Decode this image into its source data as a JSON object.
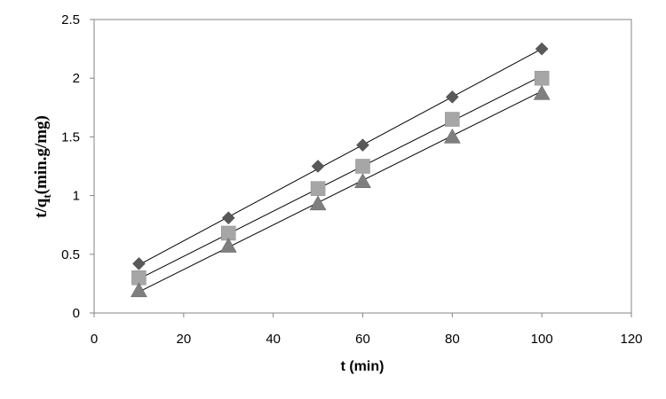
{
  "chart_data": {
    "type": "scatter",
    "title": "",
    "xlabel": "t (min)",
    "ylabel": {
      "prefix": "t/q",
      "subscript": "t",
      "suffix": "(min.g/mg)"
    },
    "xlim": [
      0,
      120
    ],
    "ylim": [
      0,
      2.5
    ],
    "x_ticks": [
      0,
      20,
      40,
      60,
      80,
      100,
      120
    ],
    "y_ticks": [
      0,
      0.5,
      1,
      1.5,
      2,
      2.5
    ],
    "x_tick_labels": [
      "0",
      "20",
      "40",
      "60",
      "80",
      "100",
      "120"
    ],
    "y_tick_labels": [
      "0",
      "0.5",
      "1",
      "1.5",
      "2",
      "2.5"
    ],
    "grid": false,
    "legend": "none",
    "series": [
      {
        "marker": "diamond",
        "color": "#595959",
        "x": [
          10,
          30,
          50,
          60,
          80,
          100
        ],
        "y": [
          0.42,
          0.81,
          1.25,
          1.43,
          1.84,
          2.25
        ],
        "trendline": [
          [
            10,
            0.41
          ],
          [
            100,
            2.25
          ]
        ]
      },
      {
        "marker": "square",
        "color": "#a6a6a6",
        "x": [
          10,
          30,
          50,
          60,
          80,
          100
        ],
        "y": [
          0.3,
          0.68,
          1.06,
          1.25,
          1.65,
          2.0
        ],
        "trendline": [
          [
            10,
            0.29
          ],
          [
            100,
            2.02
          ]
        ]
      },
      {
        "marker": "triangle",
        "color": "#7f7f7f",
        "x": [
          10,
          30,
          50,
          60,
          80,
          100
        ],
        "y": [
          0.19,
          0.57,
          0.93,
          1.12,
          1.5,
          1.87
        ],
        "trendline": [
          [
            10,
            0.18
          ],
          [
            100,
            1.89
          ]
        ]
      }
    ]
  }
}
